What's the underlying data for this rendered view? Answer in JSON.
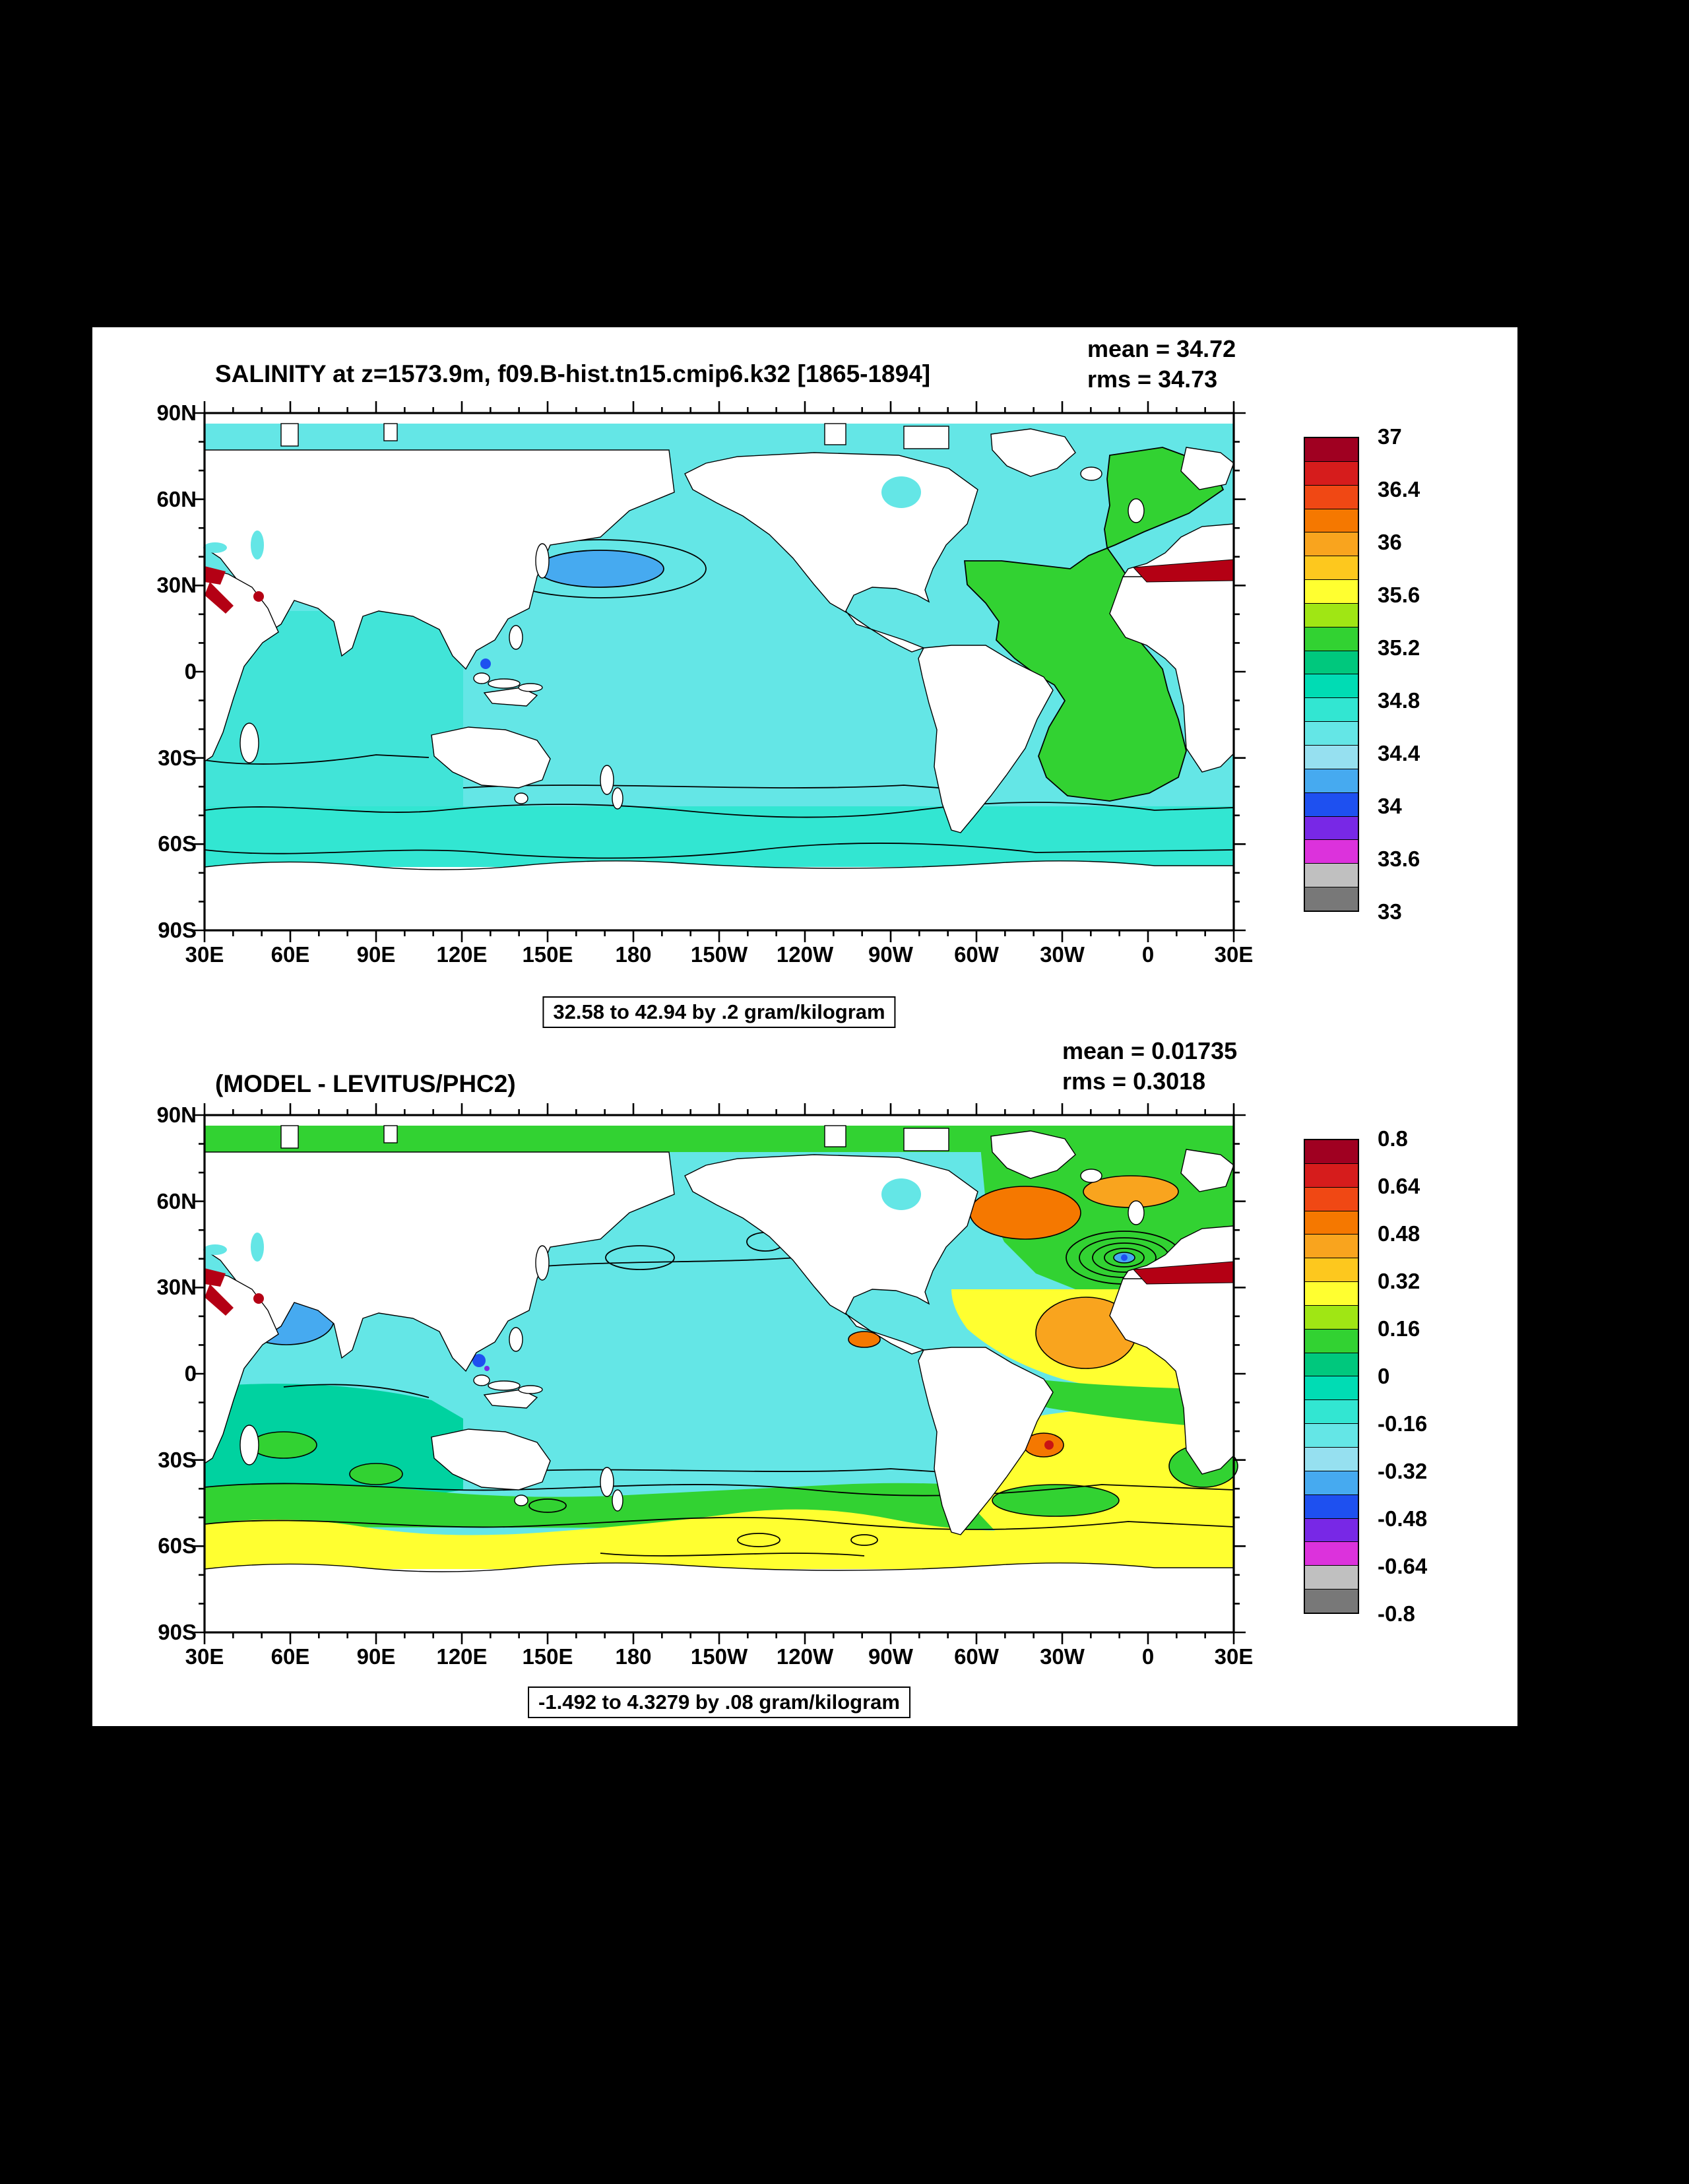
{
  "colors": {
    "background": "#000000",
    "panel": "#ffffff",
    "ocean_cyan": "#64e6e6",
    "southern_band_turquoise": "#32e6d2",
    "indian_tint": "#41e4d8",
    "green": "#32d232",
    "teal": "#00d2a0",
    "yellow": "#ffff30",
    "orange": "#f57800",
    "light_orange": "#f9a41e",
    "light_blue": "#46aaf0",
    "deep_blue": "#1e50f0",
    "purple": "#7828e6",
    "red_sea": "#b40014",
    "land": "#ffffff",
    "contour_line": "#000000"
  },
  "palette": [
    "#a00021",
    "#d61c1c",
    "#f04814",
    "#f57800",
    "#f9a41e",
    "#fdc81e",
    "#ffff30",
    "#a0e614",
    "#32d232",
    "#00c87d",
    "#00dcb4",
    "#32e6d2",
    "#64e6e6",
    "#96e0f0",
    "#46aaf0",
    "#1e50f0",
    "#7828e6",
    "#dc32dc",
    "#c0c0c0",
    "#787878"
  ],
  "top_plot": {
    "title": "SALINITY at z=1573.9m, f09.B-hist.tn15.cmip6.k32 [1865-1894]",
    "mean": "mean = 34.72",
    "rms": "rms = 34.73",
    "range_note": "32.58 to 42.94 by .2 gram/kilogram",
    "lat_labels": [
      "90N",
      "60N",
      "30N",
      "0",
      "30S",
      "60S",
      "90S"
    ],
    "lon_labels": [
      "30E",
      "60E",
      "90E",
      "120E",
      "150E",
      "180",
      "150W",
      "120W",
      "90W",
      "60W",
      "30W",
      "0",
      "30E"
    ],
    "colorbar_labels": [
      "37",
      "36.4",
      "36",
      "35.6",
      "35.2",
      "34.8",
      "34.4",
      "34",
      "33.6",
      "33"
    ]
  },
  "bottom_plot": {
    "title": "(MODEL - LEVITUS/PHC2)",
    "mean": "mean = 0.01735",
    "rms": "rms = 0.3018",
    "range_note": "-1.492 to 4.3279 by .08 gram/kilogram",
    "lat_labels": [
      "90N",
      "60N",
      "30N",
      "0",
      "30S",
      "60S",
      "90S"
    ],
    "lon_labels": [
      "30E",
      "60E",
      "90E",
      "120E",
      "150E",
      "180",
      "150W",
      "120W",
      "90W",
      "60W",
      "30W",
      "0",
      "30E"
    ],
    "colorbar_labels": [
      "0.8",
      "0.64",
      "0.48",
      "0.32",
      "0.16",
      "0",
      "-0.16",
      "-0.32",
      "-0.48",
      "-0.64",
      "-0.8"
    ]
  },
  "chart_data": [
    {
      "type": "heatmap",
      "title": "SALINITY at z=1573.9m, f09.B-hist.tn15.cmip6.k32 [1865-1894]",
      "variable": "Salinity",
      "units": "gram/kilogram",
      "depth_m": 1573.9,
      "period": "1865-1894",
      "mean": 34.72,
      "rms": 34.73,
      "data_min": 32.58,
      "data_max": 42.94,
      "contour_interval": 0.2,
      "colorbar_ticks": [
        37,
        36.4,
        36,
        35.6,
        35.2,
        34.8,
        34.4,
        34,
        33.6,
        33
      ],
      "x_tick_labels": [
        "30E",
        "60E",
        "90E",
        "120E",
        "150E",
        "180",
        "150W",
        "120W",
        "90W",
        "60W",
        "30W",
        "0",
        "30E"
      ],
      "y_tick_labels": [
        "90N",
        "60N",
        "30N",
        "0",
        "30S",
        "60S",
        "90S"
      ],
      "xlim_deg_east": [
        30,
        390
      ],
      "ylim_deg_north": [
        -90,
        90
      ],
      "legend_position": "right",
      "grid": false,
      "notable_regions": [
        {
          "region": "Pacific and Indian Oceans (bulk)",
          "approx_value": 34.6
        },
        {
          "region": "Atlantic Ocean",
          "approx_value": 35.0
        },
        {
          "region": "NW Pacific closed contour (~35N, 160E-180)",
          "approx_value": 34.3
        },
        {
          "region": "Mediterranean Sea (map right edge ~35N)",
          "approx_value": 37.0
        },
        {
          "region": "Southern Ocean band 47S-68S",
          "approx_value": 34.7
        },
        {
          "region": "Small patch near Indonesia",
          "approx_value": 34.0
        }
      ]
    },
    {
      "type": "heatmap",
      "title": "(MODEL - LEVITUS/PHC2)",
      "variable": "Salinity difference (model minus observations)",
      "units": "gram/kilogram",
      "mean": 0.01735,
      "rms": 0.3018,
      "data_min": -1.492,
      "data_max": 4.3279,
      "contour_interval": 0.08,
      "colorbar_ticks": [
        0.8,
        0.64,
        0.48,
        0.32,
        0.16,
        0,
        -0.16,
        -0.32,
        -0.48,
        -0.64,
        -0.8
      ],
      "x_tick_labels": [
        "30E",
        "60E",
        "90E",
        "120E",
        "150E",
        "180",
        "150W",
        "120W",
        "90W",
        "60W",
        "30W",
        "0",
        "30E"
      ],
      "y_tick_labels": [
        "90N",
        "60N",
        "30N",
        "0",
        "30S",
        "60S",
        "90S"
      ],
      "xlim_deg_east": [
        30,
        390
      ],
      "ylim_deg_north": [
        -90,
        90
      ],
      "legend_position": "right",
      "grid": false,
      "notable_regions": [
        {
          "region": "Central Pacific (bulk)",
          "approx_value": -0.1
        },
        {
          "region": "Arctic strip",
          "approx_value": 0.1
        },
        {
          "region": "Arabian Sea patch",
          "approx_value": -0.3
        },
        {
          "region": "NW Atlantic ~50N blob",
          "approx_value": 0.45
        },
        {
          "region": "NE Atlantic swirl ~35N with blue core",
          "approx_value": 0.2
        },
        {
          "region": "Subtropical North Atlantic",
          "approx_value": 0.35
        },
        {
          "region": "South Atlantic",
          "approx_value": 0.2
        },
        {
          "region": "Southern Ocean band 50S-68S",
          "approx_value": 0.15
        },
        {
          "region": "Patch off SE Brazil",
          "approx_value": 0.6
        },
        {
          "region": "Mediterranean (map right edge)",
          "approx_value": 0.8
        }
      ]
    }
  ]
}
